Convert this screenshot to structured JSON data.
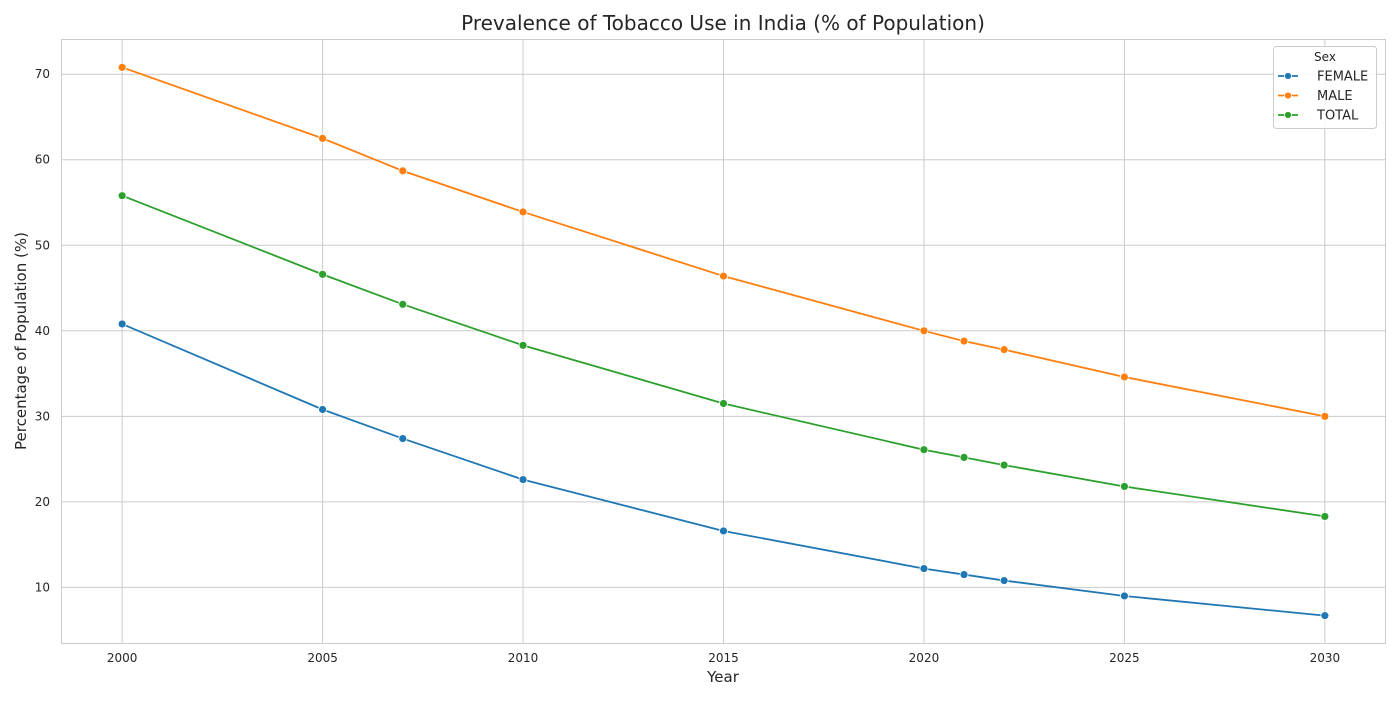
{
  "chart_data": {
    "type": "line",
    "title": "Prevalence of Tobacco Use in India (% of Population)",
    "xlabel": "Year",
    "ylabel": "Percentage of Population (%)",
    "xlim": [
      1998.5,
      2031.5
    ],
    "ylim": [
      3.5,
      74.0
    ],
    "xticks": [
      2000,
      2005,
      2010,
      2015,
      2020,
      2025,
      2030
    ],
    "yticks": [
      10,
      20,
      30,
      40,
      50,
      60,
      70
    ],
    "grid": true,
    "legend": {
      "title": "Sex",
      "placement": "top-right"
    },
    "x": [
      2000,
      2005,
      2007,
      2010,
      2015,
      2020,
      2021,
      2022,
      2025,
      2030
    ],
    "series": [
      {
        "name": "FEMALE",
        "color": "#1f77b4",
        "values": [
          40.8,
          30.8,
          27.4,
          22.6,
          16.6,
          12.2,
          11.5,
          10.8,
          9.0,
          6.7
        ]
      },
      {
        "name": "MALE",
        "color": "#ff7f0e",
        "values": [
          70.8,
          62.5,
          58.7,
          53.9,
          46.4,
          40.0,
          38.8,
          37.8,
          34.6,
          30.0
        ]
      },
      {
        "name": "TOTAL",
        "color": "#2ca02c",
        "values": [
          55.8,
          46.6,
          43.1,
          38.3,
          31.5,
          26.1,
          25.2,
          24.3,
          21.8,
          18.3
        ]
      }
    ]
  }
}
